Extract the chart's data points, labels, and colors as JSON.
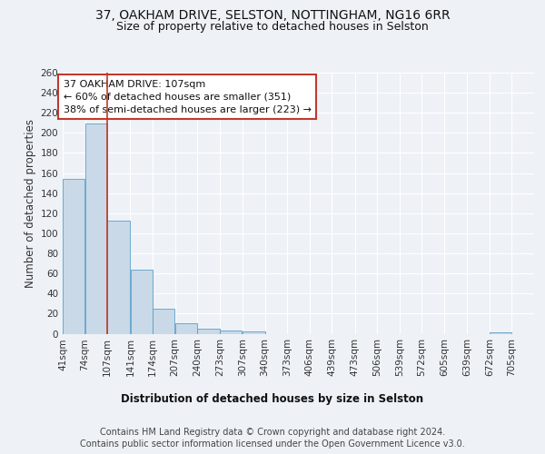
{
  "title_line1": "37, OAKHAM DRIVE, SELSTON, NOTTINGHAM, NG16 6RR",
  "title_line2": "Size of property relative to detached houses in Selston",
  "xlabel": "Distribution of detached houses by size in Selston",
  "ylabel": "Number of detached properties",
  "bar_edges": [
    41,
    74,
    107,
    141,
    174,
    207,
    240,
    273,
    307,
    340,
    373,
    406,
    439,
    473,
    506,
    539,
    572,
    605,
    639,
    672,
    705
  ],
  "bar_heights": [
    154,
    209,
    113,
    64,
    25,
    10,
    5,
    3,
    2,
    0,
    0,
    0,
    0,
    0,
    0,
    0,
    0,
    0,
    0,
    1
  ],
  "bar_color": "#c9d9e8",
  "bar_edge_color": "#5a9ec9",
  "property_size": 107,
  "vline_color": "#c0392b",
  "annotation_text": "37 OAKHAM DRIVE: 107sqm\n← 60% of detached houses are smaller (351)\n38% of semi-detached houses are larger (223) →",
  "annotation_box_color": "#c0392b",
  "annotation_bg": "#ffffff",
  "ylim": [
    0,
    260
  ],
  "yticks": [
    0,
    20,
    40,
    60,
    80,
    100,
    120,
    140,
    160,
    180,
    200,
    220,
    240,
    260
  ],
  "tick_labels": [
    "41sqm",
    "74sqm",
    "107sqm",
    "141sqm",
    "174sqm",
    "207sqm",
    "240sqm",
    "273sqm",
    "307sqm",
    "340sqm",
    "373sqm",
    "406sqm",
    "439sqm",
    "473sqm",
    "506sqm",
    "539sqm",
    "572sqm",
    "605sqm",
    "639sqm",
    "672sqm",
    "705sqm"
  ],
  "footnote1": "Contains HM Land Registry data © Crown copyright and database right 2024.",
  "footnote2": "Contains public sector information licensed under the Open Government Licence v3.0.",
  "bg_color": "#eef2f7",
  "grid_color": "#ffffff",
  "title_fontsize": 10,
  "subtitle_fontsize": 9,
  "axis_label_fontsize": 8.5,
  "tick_fontsize": 7.5,
  "annotation_fontsize": 8,
  "footnote_fontsize": 7
}
